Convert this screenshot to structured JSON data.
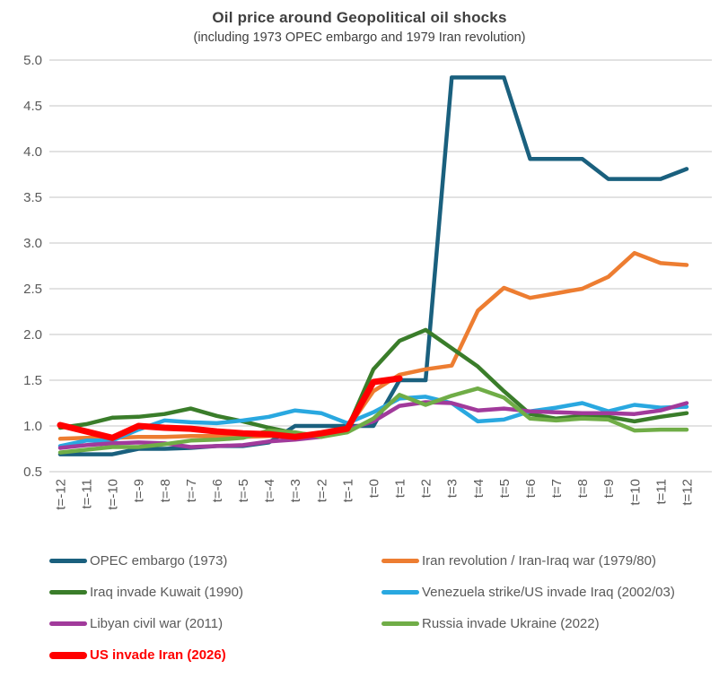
{
  "title": "Oil price around Geopolitical oil shocks",
  "subtitle": "(including 1973 OPEC embargo and 1979 Iran revolution)",
  "colors": {
    "title_text": "#3f3f3f",
    "axis_text": "#595959",
    "gridline": "#d9d9d9"
  },
  "chart_data": {
    "type": "line",
    "title": "Oil price around Geopolitical oil shocks",
    "subtitle": "(including 1973 OPEC embargo and 1979 Iran revolution)",
    "xlabel": "",
    "ylabel": "",
    "ylim": [
      0.5,
      5.0
    ],
    "ytick_step": 0.5,
    "grid": true,
    "legend_position": "bottom",
    "x_labels": [
      "t=-12",
      "t=-11",
      "t=-10",
      "t=-9",
      "t=-8",
      "t=-7",
      "t=-6",
      "t=-5",
      "t=-4",
      "t=-3",
      "t=-2",
      "t=-1",
      "t=0",
      "t=1",
      "t=2",
      "t=3",
      "t=4",
      "t=5",
      "t=6",
      "t=7",
      "t=8",
      "t=9",
      "t=10",
      "t=11",
      "t=12"
    ],
    "series": [
      {
        "name": "OPEC embargo (1973)",
        "color": "#1a607e",
        "width": 4.5,
        "emphasis": false,
        "values": [
          0.69,
          0.69,
          0.69,
          0.75,
          0.75,
          0.76,
          0.78,
          0.78,
          0.82,
          1.0,
          1.0,
          1.0,
          1.0,
          1.5,
          1.5,
          4.81,
          4.81,
          4.81,
          3.92,
          3.92,
          3.92,
          3.7,
          3.7,
          3.7,
          3.81
        ]
      },
      {
        "name": "Iran revolution / Iran-Iraq war (1979/80)",
        "color": "#ed7d31",
        "width": 4.5,
        "emphasis": false,
        "values": [
          0.86,
          0.87,
          0.87,
          0.88,
          0.88,
          0.89,
          0.89,
          0.88,
          0.89,
          0.9,
          0.92,
          0.97,
          1.38,
          1.56,
          1.62,
          1.66,
          2.26,
          2.51,
          2.4,
          2.45,
          2.5,
          2.63,
          2.89,
          2.78,
          2.76
        ]
      },
      {
        "name": "Iraq invade Kuwait (1990)",
        "color": "#3a7d2a",
        "width": 4.5,
        "emphasis": false,
        "values": [
          0.98,
          1.02,
          1.09,
          1.1,
          1.13,
          1.19,
          1.11,
          1.05,
          0.98,
          0.92,
          0.9,
          0.97,
          1.62,
          1.93,
          2.05,
          1.85,
          1.65,
          1.38,
          1.13,
          1.08,
          1.11,
          1.1,
          1.05,
          1.1,
          1.14
        ]
      },
      {
        "name": "Venezuela strike/US invade Iraq (2002/03)",
        "color": "#29a8e0",
        "width": 4.5,
        "emphasis": false,
        "values": [
          0.78,
          0.84,
          0.84,
          0.96,
          1.06,
          1.04,
          1.03,
          1.06,
          1.1,
          1.17,
          1.14,
          1.03,
          1.15,
          1.3,
          1.32,
          1.25,
          1.05,
          1.07,
          1.16,
          1.2,
          1.25,
          1.16,
          1.23,
          1.2,
          1.21
        ]
      },
      {
        "name": "Libyan civil war (2011)",
        "color": "#a13a9b",
        "width": 4.5,
        "emphasis": false,
        "values": [
          0.76,
          0.79,
          0.81,
          0.82,
          0.81,
          0.77,
          0.78,
          0.79,
          0.83,
          0.85,
          0.88,
          0.96,
          1.05,
          1.22,
          1.26,
          1.25,
          1.17,
          1.19,
          1.16,
          1.15,
          1.14,
          1.14,
          1.13,
          1.17,
          1.25
        ]
      },
      {
        "name": "Russia invade Ukraine (2022)",
        "color": "#70ad47",
        "width": 4.5,
        "emphasis": false,
        "values": [
          0.71,
          0.74,
          0.77,
          0.77,
          0.8,
          0.84,
          0.85,
          0.87,
          0.95,
          0.93,
          0.88,
          0.93,
          1.08,
          1.34,
          1.23,
          1.33,
          1.41,
          1.31,
          1.08,
          1.06,
          1.08,
          1.07,
          0.95,
          0.96,
          0.96
        ]
      },
      {
        "name": "US invade Iran (2026)",
        "color": "#ff0000",
        "width": 7,
        "emphasis": true,
        "values": [
          1.01,
          0.94,
          0.87,
          1.0,
          0.98,
          0.97,
          0.94,
          0.92,
          0.91,
          0.88,
          0.92,
          0.97,
          1.48,
          1.52,
          null,
          null,
          null,
          null,
          null,
          null,
          null,
          null,
          null,
          null,
          null
        ]
      }
    ]
  }
}
